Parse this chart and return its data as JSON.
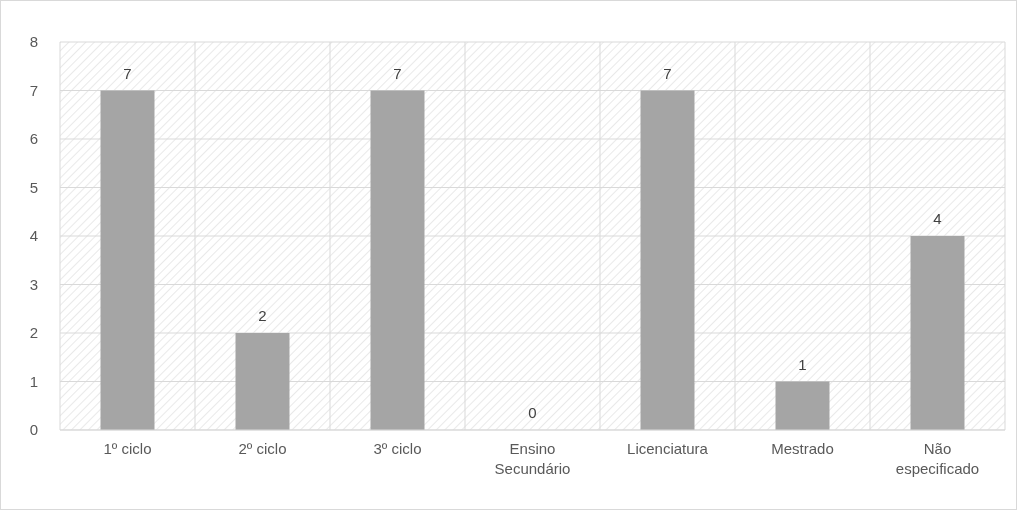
{
  "chart_data": {
    "type": "bar",
    "categories": [
      "1º ciclo",
      "2º ciclo",
      "3º ciclo",
      "Ensino Secundário",
      "Licenciatura",
      "Mestrado",
      "Não especificado"
    ],
    "values": [
      7,
      2,
      7,
      0,
      7,
      1,
      4
    ],
    "color": "#a5a5a5",
    "ylim": [
      0,
      8
    ],
    "yticks": [
      0,
      1,
      2,
      3,
      4,
      5,
      6,
      7,
      8
    ],
    "grid": true,
    "data_labels": true
  }
}
